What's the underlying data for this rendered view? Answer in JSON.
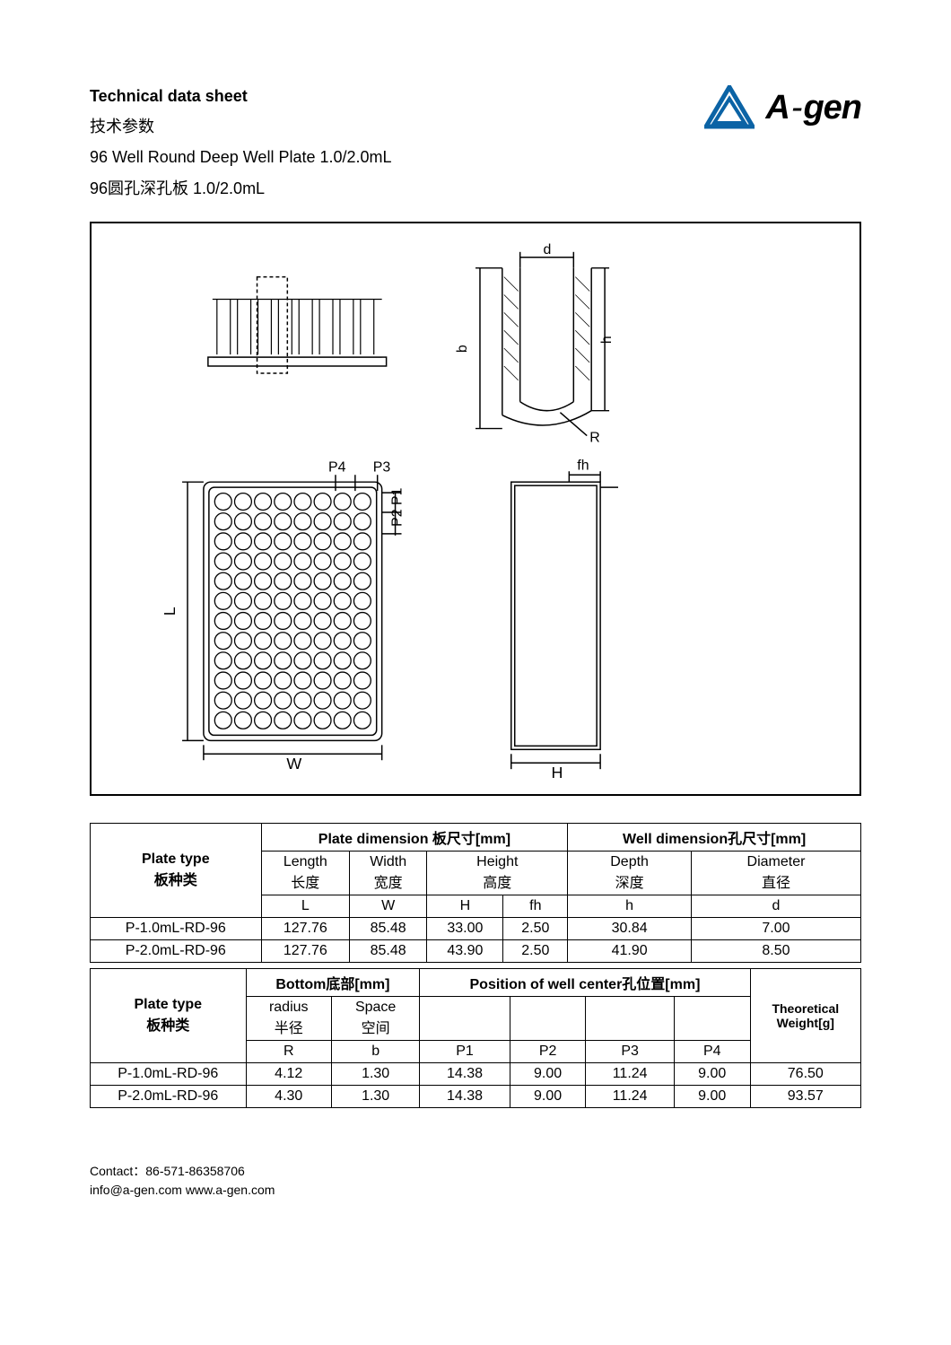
{
  "header": {
    "title_en": "Technical data sheet",
    "title_cn": "技术参数",
    "product_en": "96 Well Round Deep Well Plate 1.0/2.0mL",
    "product_cn": "96圆孔深孔板 1.0/2.0mL",
    "brand": "A-gen",
    "logo_color": "#0b63a5"
  },
  "diagram": {
    "border_color": "#000000",
    "labels": [
      "d",
      "h",
      "b",
      "R",
      "P4",
      "P3",
      "P1",
      "P2",
      "fh",
      "L",
      "W",
      "H"
    ]
  },
  "table1": {
    "col_plate_type_en": "Plate type",
    "col_plate_type_cn": "板种类",
    "group_plate_dim": "Plate dimension 板尺寸[mm]",
    "group_well_dim": "Well dimension孔尺寸[mm]",
    "sub_length_en": "Length",
    "sub_length_cn": "长度",
    "sub_length_sym": "L",
    "sub_width_en": "Width",
    "sub_width_cn": "宽度",
    "sub_width_sym": "W",
    "sub_height_en": "Height",
    "sub_height_cn": "高度",
    "sub_height_sym_H": "H",
    "sub_height_sym_fh": "fh",
    "sub_depth_en": "Depth",
    "sub_depth_cn": "深度",
    "sub_depth_sym": "h",
    "sub_diam_en": "Diameter",
    "sub_diam_cn": "直径",
    "sub_diam_sym": "d",
    "rows": [
      {
        "name": "P-1.0mL-RD-96",
        "L": "127.76",
        "W": "85.48",
        "H": "33.00",
        "fh": "2.50",
        "h": "30.84",
        "d": "7.00"
      },
      {
        "name": "P-2.0mL-RD-96",
        "L": "127.76",
        "W": "85.48",
        "H": "43.90",
        "fh": "2.50",
        "h": "41.90",
        "d": "8.50"
      }
    ]
  },
  "table2": {
    "col_plate_type_en": "Plate type",
    "col_plate_type_cn": "板种类",
    "group_bottom": "Bottom底部[mm]",
    "group_pos": "Position of well center孔位置[mm]",
    "col_weight_l1": "Theoretical",
    "col_weight_l2": "Weight[g]",
    "sub_radius_en": "radius",
    "sub_radius_cn": "半径",
    "sub_radius_sym": "R",
    "sub_space_en": "Space",
    "sub_space_cn": "空间",
    "sub_space_sym": "b",
    "sym_P1": "P1",
    "sym_P2": "P2",
    "sym_P3": "P3",
    "sym_P4": "P4",
    "rows": [
      {
        "name": "P-1.0mL-RD-96",
        "R": "4.12",
        "b": "1.30",
        "P1": "14.38",
        "P2": "9.00",
        "P3": "11.24",
        "P4": "9.00",
        "wt": "76.50"
      },
      {
        "name": "P-2.0mL-RD-96",
        "R": "4.30",
        "b": "1.30",
        "P1": "14.38",
        "P2": "9.00",
        "P3": "11.24",
        "P4": "9.00",
        "wt": "93.57"
      }
    ]
  },
  "footer": {
    "contact": "Contact：86-571-86358706",
    "email_web": "info@a-gen.com www.a-gen.com"
  }
}
